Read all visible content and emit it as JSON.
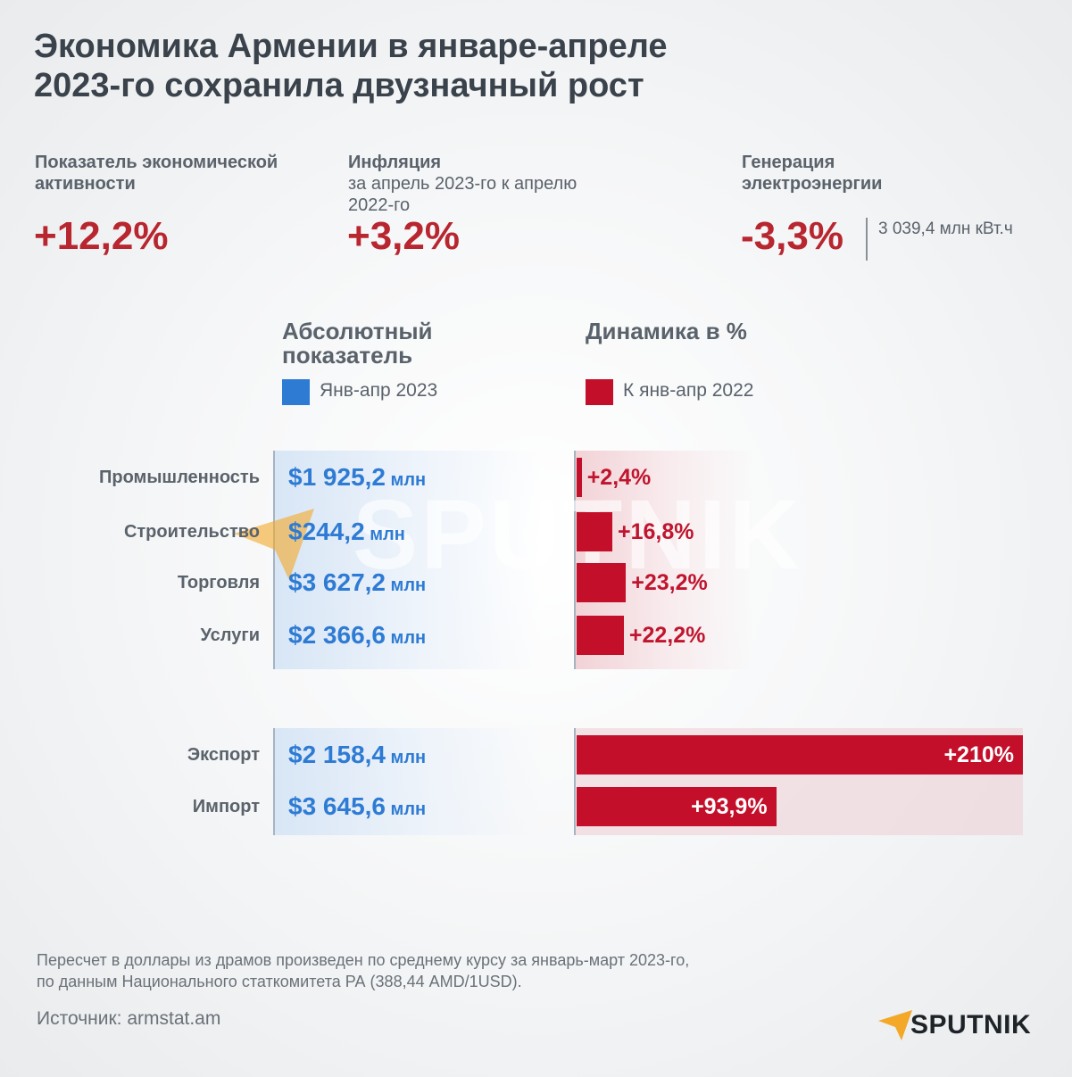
{
  "title_line1": "Экономика Армении в январе-апреле",
  "title_line2": "2023-го сохранила двузначный рост",
  "kpis": {
    "activity": {
      "label_line1": "Показатель экономической",
      "label_line2": "активности",
      "value": "+12,2%"
    },
    "inflation": {
      "label": "Инфляция",
      "sub_line1": "за апрель 2023-го к апрелю",
      "sub_line2": "2022-го",
      "value": "+3,2%"
    },
    "energy": {
      "label_line1": "Генерация",
      "label_line2": "электроэнергии",
      "value": "-3,3%",
      "note": "3 039,4 млн кВт.ч"
    }
  },
  "chart_data": {
    "type": "bar",
    "abs_header_line1": "Абсолютный",
    "abs_header_line2": "показатель",
    "dyn_header": "Динамика в %",
    "legend_abs": "Янв-апр 2023",
    "legend_dyn": "К янв-апр 2022",
    "unit": "млн",
    "colors": {
      "abs": "#2e7bd4",
      "dyn": "#c40f2a"
    },
    "group1": [
      {
        "category": "Промышленность",
        "abs_value": "$1 925,2",
        "pct": 2.4,
        "pct_label": "+2,4%"
      },
      {
        "category": "Строительство",
        "abs_value": "$244,2",
        "pct": 16.8,
        "pct_label": "+16,8%"
      },
      {
        "category": "Торговля",
        "abs_value": "$3 627,2",
        "pct": 23.2,
        "pct_label": "+23,2%"
      },
      {
        "category": "Услуги",
        "abs_value": "$2 366,6",
        "pct": 22.2,
        "pct_label": "+22,2%"
      }
    ],
    "group2": [
      {
        "category": "Экспорт",
        "abs_value": "$2 158,4",
        "pct": 210,
        "pct_label": "+210%"
      },
      {
        "category": "Импорт",
        "abs_value": "$3 645,6",
        "pct": 93.9,
        "pct_label": "+93,9%"
      }
    ],
    "pct_max": 210
  },
  "watermark": "SPUTNIK",
  "footnote_line1": "Пересчет в доллары из драмов произведен по среднему курсу за январь-март 2023-го,",
  "footnote_line2": "по данным Национального статкомитета РА (388,44 AMD/1USD).",
  "source": "Источник: armstat.am",
  "brand": "SPUTNIK"
}
